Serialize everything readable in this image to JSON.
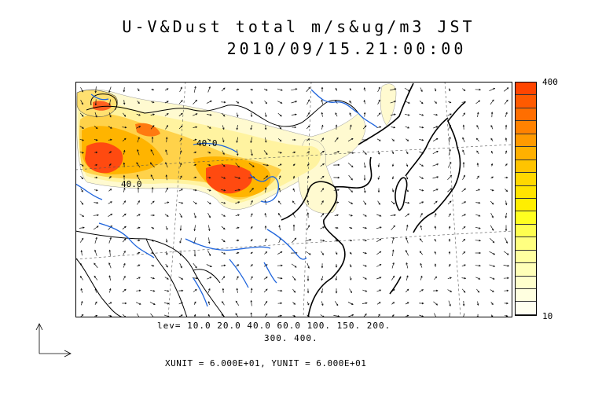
{
  "title": {
    "line1": "U-V&Dust total m/s&ug/m3 JST",
    "line2": "2010/09/15.21:00:00"
  },
  "colorbar": {
    "max_label": "400",
    "min_label": "10",
    "colors": [
      "#ff4500",
      "#ff5a00",
      "#ff6e00",
      "#ff8200",
      "#ff9a00",
      "#ffb000",
      "#ffc400",
      "#ffd800",
      "#ffe400",
      "#ffee00",
      "#ffff20",
      "#ffff50",
      "#ffff80",
      "#ffffa0",
      "#ffffb8",
      "#ffffcc",
      "#ffffe0",
      "#fffff0"
    ]
  },
  "contour_levels": {
    "line1": "lev= 10.0 20.0 40.0 60.0 100. 150. 200.",
    "line2": "300. 400."
  },
  "map_labels": {
    "label_a": "40.0",
    "label_b": "40.0"
  },
  "units_text": "XUNIT = 6.000E+01, YUNIT = 6.000E+01",
  "style": {
    "river_color": "#1e64dc",
    "coast_color": "#000000",
    "dust_high": "#ff4500",
    "dust_low": "#fffad0"
  }
}
